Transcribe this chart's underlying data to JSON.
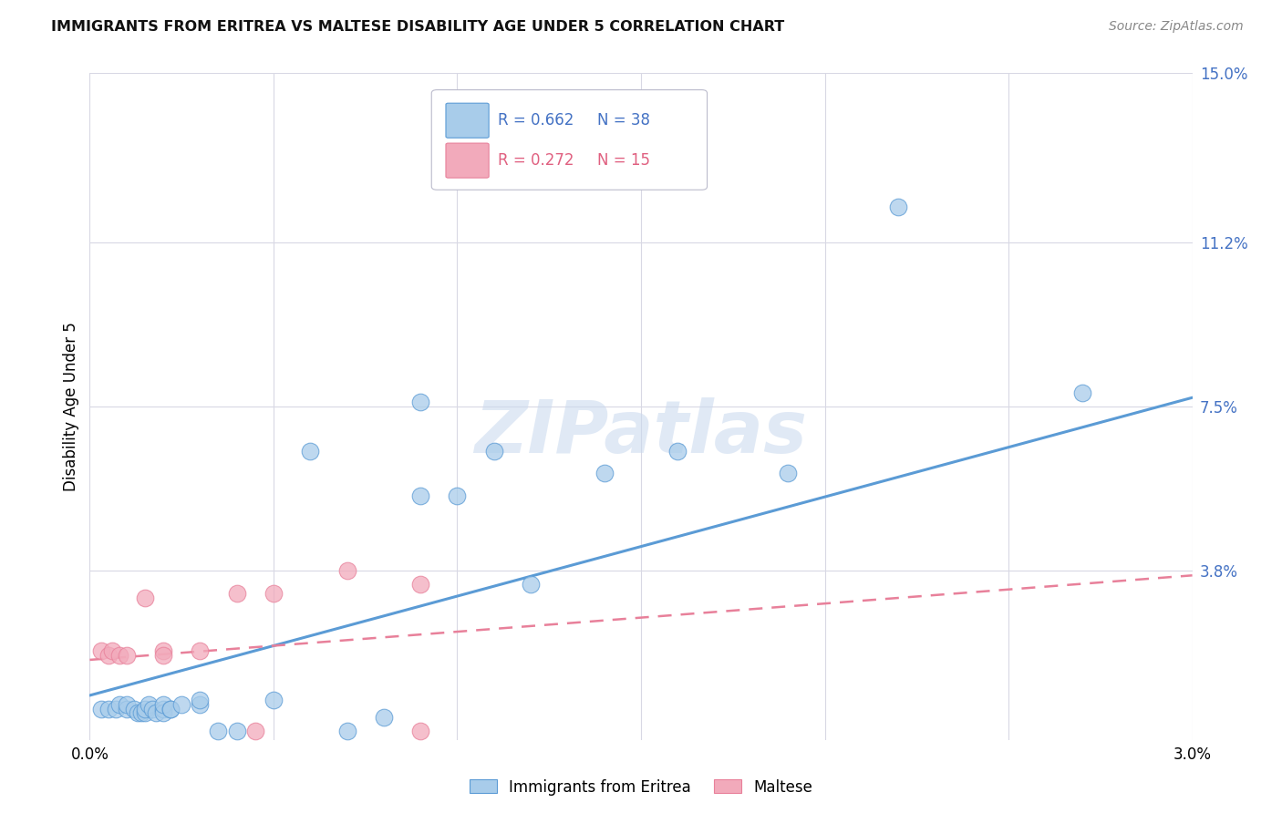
{
  "title": "IMMIGRANTS FROM ERITREA VS MALTESE DISABILITY AGE UNDER 5 CORRELATION CHART",
  "source": "Source: ZipAtlas.com",
  "ylabel": "Disability Age Under 5",
  "xlim": [
    0.0,
    0.03
  ],
  "ylim": [
    0.0,
    0.15
  ],
  "ytick_labels": [
    "15.0%",
    "11.2%",
    "7.5%",
    "3.8%"
  ],
  "ytick_values": [
    0.15,
    0.112,
    0.075,
    0.038
  ],
  "legend_r1": "R = 0.662",
  "legend_n1": "N = 38",
  "legend_r2": "R = 0.272",
  "legend_n2": "N = 15",
  "color_blue": "#A8CCEA",
  "color_pink": "#F2AABB",
  "color_blue_dark": "#5B9BD5",
  "color_pink_dark": "#E8809A",
  "color_blue_text": "#4472C4",
  "color_pink_text": "#E06080",
  "watermark": "ZIPatlas",
  "blue_scatter_x": [
    0.0003,
    0.0005,
    0.0007,
    0.0008,
    0.001,
    0.001,
    0.0012,
    0.0013,
    0.0014,
    0.0015,
    0.0015,
    0.0016,
    0.0017,
    0.0018,
    0.002,
    0.002,
    0.002,
    0.0022,
    0.0022,
    0.0025,
    0.003,
    0.003,
    0.0035,
    0.004,
    0.005,
    0.006,
    0.007,
    0.008,
    0.009,
    0.009,
    0.01,
    0.011,
    0.012,
    0.014,
    0.016,
    0.019,
    0.022,
    0.027
  ],
  "blue_scatter_y": [
    0.007,
    0.007,
    0.007,
    0.008,
    0.007,
    0.008,
    0.007,
    0.006,
    0.006,
    0.006,
    0.007,
    0.008,
    0.007,
    0.006,
    0.007,
    0.006,
    0.008,
    0.007,
    0.007,
    0.008,
    0.008,
    0.009,
    0.002,
    0.002,
    0.009,
    0.065,
    0.002,
    0.005,
    0.055,
    0.076,
    0.055,
    0.065,
    0.035,
    0.06,
    0.065,
    0.06,
    0.12,
    0.078
  ],
  "pink_scatter_x": [
    0.0003,
    0.0005,
    0.0006,
    0.0008,
    0.001,
    0.0015,
    0.002,
    0.002,
    0.003,
    0.004,
    0.0045,
    0.005,
    0.007,
    0.009,
    0.009
  ],
  "pink_scatter_y": [
    0.02,
    0.019,
    0.02,
    0.019,
    0.019,
    0.032,
    0.02,
    0.019,
    0.02,
    0.033,
    0.002,
    0.033,
    0.038,
    0.002,
    0.035
  ],
  "blue_line_x": [
    0.0,
    0.03
  ],
  "blue_line_y": [
    0.01,
    0.077
  ],
  "pink_line_x": [
    0.0,
    0.03
  ],
  "pink_line_y": [
    0.018,
    0.037
  ],
  "background_color": "#FFFFFF",
  "grid_color": "#D8D8E4"
}
